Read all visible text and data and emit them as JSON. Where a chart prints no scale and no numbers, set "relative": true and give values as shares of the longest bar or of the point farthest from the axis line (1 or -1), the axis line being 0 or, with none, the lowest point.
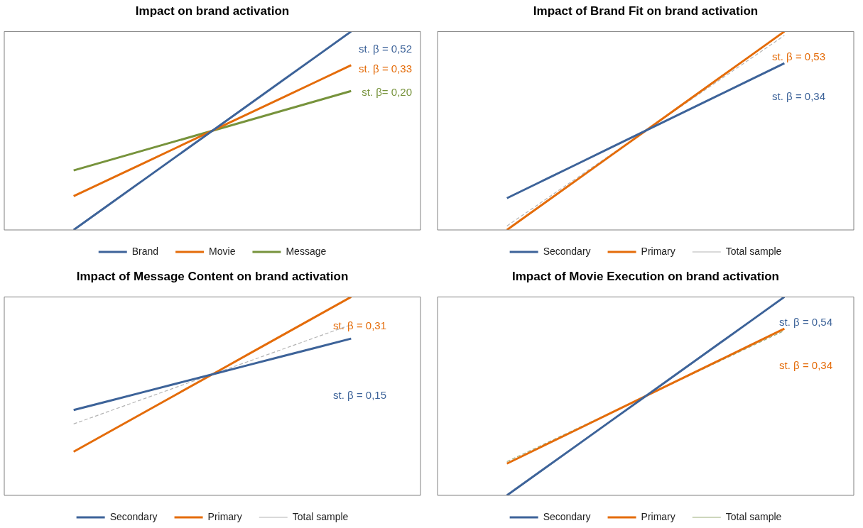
{
  "chart_data": [
    {
      "type": "line",
      "title": "Impact on brand activation",
      "relative": true,
      "legend": "bottom",
      "categories": [
        null,
        null,
        null,
        null,
        null,
        null,
        null,
        null,
        null,
        null,
        null,
        null,
        null
      ],
      "series": [
        {
          "name": "Brand",
          "color": "#3d6399",
          "values": [
            null,
            null,
            0,
            0.125,
            0.25,
            0.375,
            0.5,
            0.625,
            0.75,
            0.875,
            1,
            null,
            null
          ]
        },
        {
          "name": "Movie",
          "color": "#e46c0a",
          "values": [
            null,
            null,
            0.17,
            0.2525,
            0.335,
            0.4175,
            0.5,
            0.5825,
            0.665,
            0.7475,
            0.83,
            null,
            null
          ]
        },
        {
          "name": "Message",
          "color": "#77933c",
          "values": [
            null,
            null,
            0.3,
            0.35,
            0.4,
            0.45,
            0.5,
            0.55,
            0.6,
            0.65,
            0.7,
            null,
            null
          ]
        }
      ],
      "annotations": [
        "st. β = 0,52",
        "st. β = 0,33",
        "st. β= 0,20"
      ]
    },
    {
      "type": "line",
      "title": "Impact of Brand Fit on brand activation",
      "relative": true,
      "legend": "bottom",
      "categories": [
        null,
        null,
        null,
        null,
        null,
        null,
        null,
        null,
        null,
        null,
        null,
        null,
        null
      ],
      "series": [
        {
          "name": "Secondary",
          "color": "#3d6399",
          "values": [
            null,
            null,
            0.16,
            0.245,
            0.33,
            0.415,
            0.5,
            0.585,
            0.67,
            0.755,
            0.84,
            null,
            null
          ]
        },
        {
          "name": "Primary",
          "color": "#e46c0a",
          "values": [
            null,
            null,
            0,
            0.125,
            0.25,
            0.375,
            0.5,
            0.625,
            0.75,
            0.875,
            1,
            null,
            null
          ]
        },
        {
          "name": "Total sample",
          "color": "#b4b4b4",
          "line_style": "dashed",
          "values": [
            null,
            null,
            0.02,
            0.14,
            0.26,
            0.38,
            0.5,
            0.62,
            0.74,
            0.86,
            0.98,
            null,
            null
          ]
        }
      ],
      "annotations": [
        "st. β = 0,34",
        "st. β = 0,53"
      ]
    },
    {
      "type": "line",
      "title": "Impact of Message Content on brand activation",
      "relative": true,
      "legend": "bottom",
      "categories": [
        null,
        null,
        null,
        null,
        null,
        null,
        null,
        null,
        null,
        null,
        null,
        null,
        null
      ],
      "series": [
        {
          "name": "Secondary",
          "color": "#3d6399",
          "values": [
            null,
            null,
            0.43,
            0.475,
            0.52,
            0.565,
            0.61,
            0.655,
            0.7,
            0.745,
            0.79,
            null,
            null
          ]
        },
        {
          "name": "Primary",
          "color": "#e46c0a",
          "values": [
            null,
            null,
            0.22,
            0.3175,
            0.415,
            0.5125,
            0.61,
            0.7075,
            0.805,
            0.9025,
            1,
            null,
            null
          ]
        },
        {
          "name": "Total sample",
          "color": "#b4b4b4",
          "line_style": "dashed",
          "values": [
            null,
            null,
            0.36,
            0.4225,
            0.485,
            0.5475,
            0.61,
            0.6725,
            0.735,
            0.7975,
            0.86,
            null,
            null
          ]
        }
      ],
      "annotations": [
        "st. β = 0,15",
        "st. β = 0,31"
      ]
    },
    {
      "type": "line",
      "title": "Impact of Movie Execution on brand activation",
      "relative": true,
      "legend": "bottom",
      "categories": [
        null,
        null,
        null,
        null,
        null,
        null,
        null,
        null,
        null,
        null,
        null,
        null,
        null
      ],
      "series": [
        {
          "name": "Secondary",
          "color": "#3d6399",
          "values": [
            null,
            null,
            0,
            0.125,
            0.25,
            0.375,
            0.5,
            0.625,
            0.75,
            0.875,
            1,
            null,
            null
          ]
        },
        {
          "name": "Primary",
          "color": "#e46c0a",
          "values": [
            null,
            null,
            0.16,
            0.245,
            0.33,
            0.415,
            0.5,
            0.585,
            0.67,
            0.755,
            0.84,
            null,
            null
          ]
        },
        {
          "name": "Total sample",
          "color": "#9bad7a",
          "line_style": "dashed",
          "values": [
            null,
            null,
            0.17,
            0.2525,
            0.335,
            0.4175,
            0.5,
            0.5825,
            0.665,
            0.7475,
            0.83,
            null,
            null
          ]
        }
      ],
      "annotations": [
        "st. β = 0,54",
        "st. β = 0,34"
      ]
    }
  ]
}
